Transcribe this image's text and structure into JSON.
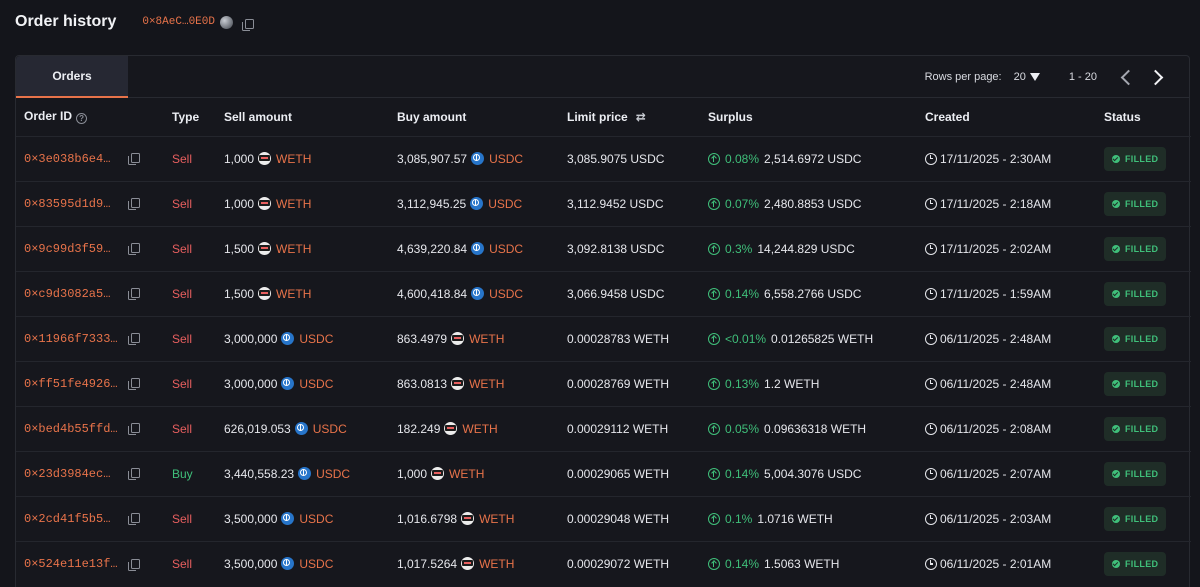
{
  "header": {
    "title": "Order history",
    "address": "0×8AeC…0E0D"
  },
  "tabs": [
    {
      "label": "Orders",
      "active": true
    }
  ],
  "pagination": {
    "rows_per_page_label": "Rows per page:",
    "rows_per_page": "20",
    "range": "1 - 20"
  },
  "columns": {
    "order_id": "Order ID",
    "type": "Type",
    "sell_amount": "Sell amount",
    "buy_amount": "Buy amount",
    "limit_price": "Limit price",
    "surplus": "Surplus",
    "created": "Created",
    "status": "Status"
  },
  "colors": {
    "accent": "#e8734a",
    "sell": "#e85f5f",
    "buy": "#3fbf7a",
    "filled": "#3fbf7a"
  },
  "orders": [
    {
      "id": "0×3e038b6e4…",
      "type": "Sell",
      "sell": "1,000",
      "sell_token": "WETH",
      "buy": "3,085,907.57",
      "buy_token": "USDC",
      "limit": "3,085.9075 USDC",
      "pct": "0.08%",
      "surplus": "2,514.6972 USDC",
      "created": "17/11/2025 - 2:30AM",
      "status": "FILLED"
    },
    {
      "id": "0×83595d1d9…",
      "type": "Sell",
      "sell": "1,000",
      "sell_token": "WETH",
      "buy": "3,112,945.25",
      "buy_token": "USDC",
      "limit": "3,112.9452 USDC",
      "pct": "0.07%",
      "surplus": "2,480.8853 USDC",
      "created": "17/11/2025 - 2:18AM",
      "status": "FILLED"
    },
    {
      "id": "0×9c99d3f59…",
      "type": "Sell",
      "sell": "1,500",
      "sell_token": "WETH",
      "buy": "4,639,220.84",
      "buy_token": "USDC",
      "limit": "3,092.8138 USDC",
      "pct": "0.3%",
      "surplus": "14,244.829 USDC",
      "created": "17/11/2025 - 2:02AM",
      "status": "FILLED"
    },
    {
      "id": "0×c9d3082a5…",
      "type": "Sell",
      "sell": "1,500",
      "sell_token": "WETH",
      "buy": "4,600,418.84",
      "buy_token": "USDC",
      "limit": "3,066.9458 USDC",
      "pct": "0.14%",
      "surplus": "6,558.2766 USDC",
      "created": "17/11/2025 - 1:59AM",
      "status": "FILLED"
    },
    {
      "id": "0×11966f7333…",
      "type": "Sell",
      "sell": "3,000,000",
      "sell_token": "USDC",
      "buy": "863.4979",
      "buy_token": "WETH",
      "limit": "0.00028783 WETH",
      "pct": "<0.01%",
      "surplus": "0.01265825 WETH",
      "created": "06/11/2025 - 2:48AM",
      "status": "FILLED"
    },
    {
      "id": "0×ff51fe4926…",
      "type": "Sell",
      "sell": "3,000,000",
      "sell_token": "USDC",
      "buy": "863.0813",
      "buy_token": "WETH",
      "limit": "0.00028769 WETH",
      "pct": "0.13%",
      "surplus": "1.2 WETH",
      "created": "06/11/2025 - 2:48AM",
      "status": "FILLED"
    },
    {
      "id": "0×bed4b55ffd…",
      "type": "Sell",
      "sell": "626,019.053",
      "sell_token": "USDC",
      "buy": "182.249",
      "buy_token": "WETH",
      "limit": "0.00029112 WETH",
      "pct": "0.05%",
      "surplus": "0.09636318 WETH",
      "created": "06/11/2025 - 2:08AM",
      "status": "FILLED"
    },
    {
      "id": "0×23d3984ec…",
      "type": "Buy",
      "sell": "3,440,558.23",
      "sell_token": "USDC",
      "buy": "1,000",
      "buy_token": "WETH",
      "limit": "0.00029065 WETH",
      "pct": "0.14%",
      "surplus": "5,004.3076 USDC",
      "created": "06/11/2025 - 2:07AM",
      "status": "FILLED"
    },
    {
      "id": "0×2cd41f5b5…",
      "type": "Sell",
      "sell": "3,500,000",
      "sell_token": "USDC",
      "buy": "1,016.6798",
      "buy_token": "WETH",
      "limit": "0.00029048 WETH",
      "pct": "0.1%",
      "surplus": "1.0716 WETH",
      "created": "06/11/2025 - 2:03AM",
      "status": "FILLED"
    },
    {
      "id": "0×524e11e13f…",
      "type": "Sell",
      "sell": "3,500,000",
      "sell_token": "USDC",
      "buy": "1,017.5264",
      "buy_token": "WETH",
      "limit": "0.00029072 WETH",
      "pct": "0.14%",
      "surplus": "1.5063 WETH",
      "created": "06/11/2025 - 2:01AM",
      "status": "FILLED"
    }
  ]
}
